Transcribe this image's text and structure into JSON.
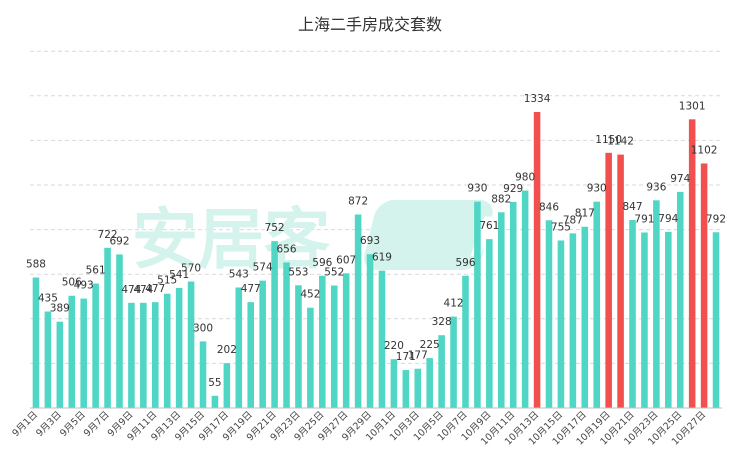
{
  "chart_data": {
    "type": "bar",
    "title": "上海二手房成交套数",
    "xlabel": "",
    "ylabel": "",
    "ylim": [
      0,
      1334
    ],
    "grid": true,
    "categories": [
      "9月1日",
      "9月2日",
      "9月3日",
      "9月4日",
      "9月5日",
      "9月6日",
      "9月7日",
      "9月8日",
      "9月9日",
      "9月10日",
      "9月11日",
      "9月12日",
      "9月13日",
      "9月14日",
      "9月15日",
      "9月16日",
      "9月17日",
      "9月18日",
      "9月19日",
      "9月20日",
      "9月21日",
      "9月22日",
      "9月23日",
      "9月24日",
      "9月25日",
      "9月26日",
      "9月27日",
      "9月28日",
      "9月29日",
      "9月30日",
      "10月1日",
      "10月2日",
      "10月3日",
      "10月4日",
      "10月5日",
      "10月6日",
      "10月7日",
      "10月8日",
      "10月9日",
      "10月10日",
      "10月11日",
      "10月12日",
      "10月13日",
      "10月14日",
      "10月15日",
      "10月16日",
      "10月17日",
      "10月18日",
      "10月19日",
      "10月20日",
      "10月21日",
      "10月22日",
      "10月23日",
      "10月24日",
      "10月25日",
      "10月26日",
      "10月27日",
      "10月28日"
    ],
    "values": [
      588,
      435,
      389,
      506,
      493,
      561,
      722,
      692,
      474,
      474,
      477,
      515,
      541,
      570,
      300,
      55,
      202,
      543,
      477,
      574,
      752,
      656,
      553,
      452,
      596,
      552,
      607,
      872,
      693,
      619,
      220,
      171,
      177,
      225,
      328,
      412,
      596,
      930,
      761,
      882,
      929,
      980,
      1334,
      846,
      755,
      787,
      817,
      930,
      1150,
      1142,
      847,
      791,
      936,
      794,
      974,
      1301,
      1102,
      792
    ],
    "highlighted": [
      "10月13日",
      "10月19日",
      "10月20日",
      "10月26日",
      "10月27日"
    ],
    "tick_labels": [
      "9月1日",
      "9月3日",
      "9月5日",
      "9月7日",
      "9月9日",
      "9月11日",
      "9月13日",
      "9月15日",
      "9月17日",
      "9月19日",
      "9月21日",
      "9月23日",
      "9月25日",
      "9月27日",
      "9月29日",
      "10月1日",
      "10月3日",
      "10月5日",
      "10月7日",
      "10月9日",
      "10月11日",
      "10月13日",
      "10月15日",
      "10月17日",
      "10月19日",
      "10月21日",
      "10月23日",
      "10月25日",
      "10月27日"
    ],
    "colors": {
      "normal": "#4fd6c4",
      "highlight": "#f2504e"
    }
  },
  "watermark": {
    "text": "安居客",
    "logo_text": "A"
  }
}
